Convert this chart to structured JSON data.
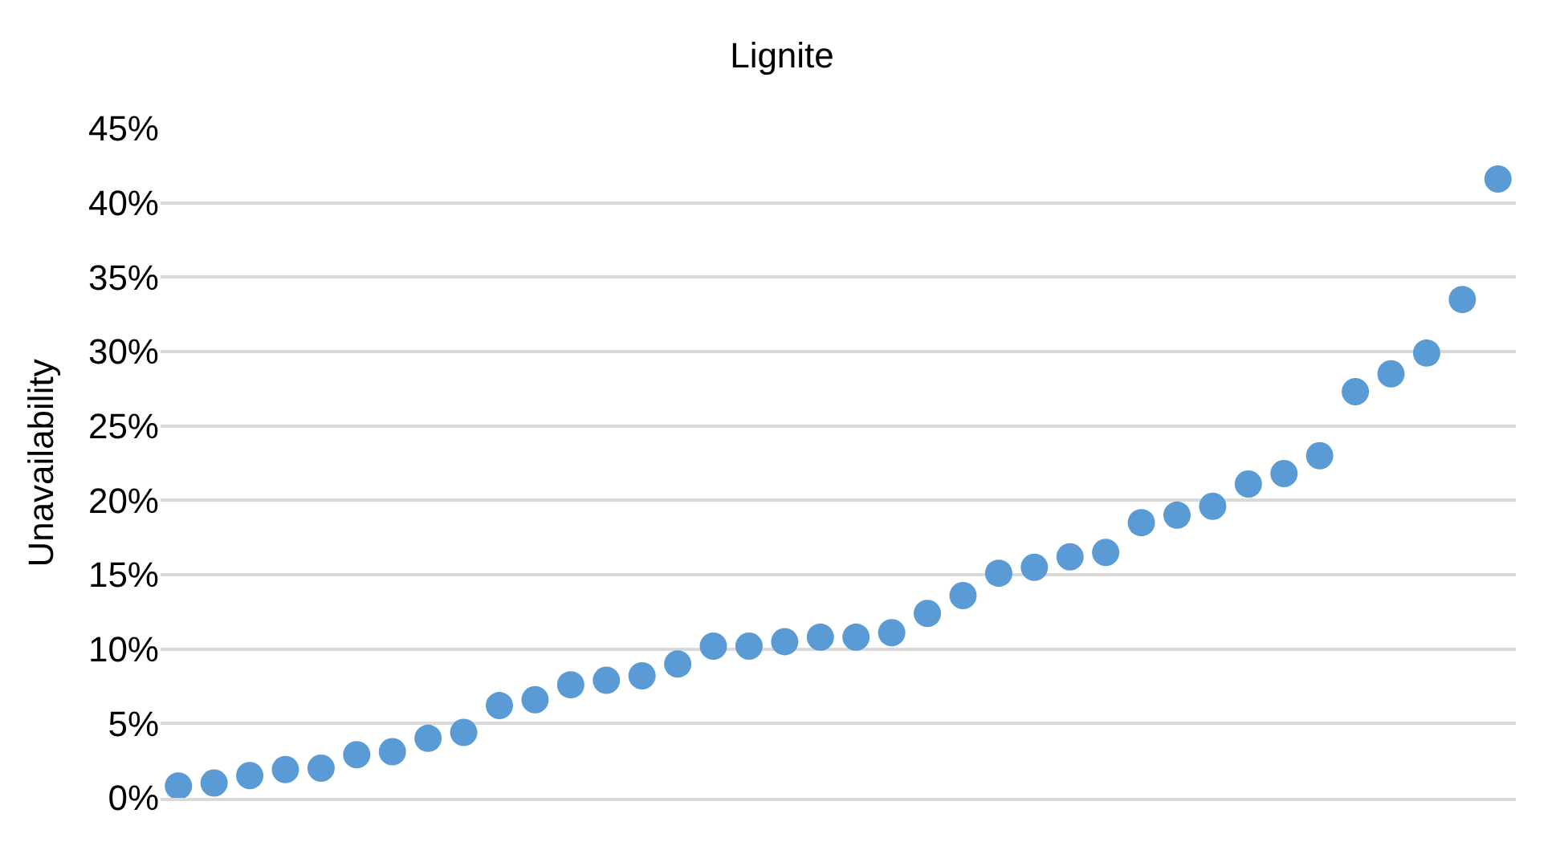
{
  "chart_data": {
    "type": "scatter",
    "title": "Lignite",
    "ylabel": "Unavailability",
    "categories": [
      null,
      null,
      null,
      null,
      null,
      null,
      null,
      null,
      null,
      null,
      null,
      null,
      null,
      null,
      null,
      null,
      null,
      null,
      null,
      null,
      null,
      null,
      null,
      null,
      null,
      null,
      null,
      null,
      null,
      null,
      null,
      null,
      null,
      null,
      null,
      null,
      null,
      null
    ],
    "series": [
      {
        "color": "#5b9bd5",
        "values": [
          0.8,
          1.0,
          1.5,
          1.9,
          2.0,
          2.9,
          3.1,
          4.0,
          4.4,
          6.2,
          6.6,
          7.6,
          7.9,
          8.2,
          9.0,
          10.2,
          10.2,
          10.5,
          10.8,
          10.8,
          11.1,
          12.4,
          13.6,
          15.1,
          15.5,
          16.2,
          16.5,
          18.5,
          19.0,
          19.6,
          21.1,
          21.8,
          23.0,
          27.3,
          28.5,
          29.9,
          33.5,
          41.6
        ]
      }
    ],
    "ylim": [
      0,
      45
    ],
    "yticks": [
      {
        "value": 0,
        "label": "0%"
      },
      {
        "value": 5,
        "label": "5%"
      },
      {
        "value": 10,
        "label": "10%"
      },
      {
        "value": 15,
        "label": "15%"
      },
      {
        "value": 20,
        "label": "20%"
      },
      {
        "value": 25,
        "label": "25%"
      },
      {
        "value": 30,
        "label": "30%"
      },
      {
        "value": 35,
        "label": "35%"
      },
      {
        "value": 40,
        "label": "40%"
      },
      {
        "value": 45,
        "label": "45%"
      }
    ],
    "grid": "y",
    "marker": "circle",
    "legend": false,
    "tick_labels": "y"
  }
}
